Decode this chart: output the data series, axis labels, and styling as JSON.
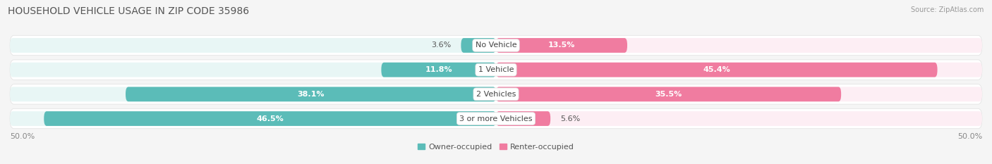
{
  "title": "HOUSEHOLD VEHICLE USAGE IN ZIP CODE 35986",
  "source": "Source: ZipAtlas.com",
  "categories": [
    "No Vehicle",
    "1 Vehicle",
    "2 Vehicles",
    "3 or more Vehicles"
  ],
  "owner_values": [
    3.6,
    11.8,
    38.1,
    46.5
  ],
  "renter_values": [
    13.5,
    45.4,
    35.5,
    5.6
  ],
  "owner_color": "#5bbcb8",
  "renter_color": "#f07ca0",
  "owner_bg": "#e8f6f5",
  "renter_bg": "#fdeef4",
  "row_bg": "#f0f0f0",
  "axis_label_left": "50.0%",
  "axis_label_right": "50.0%",
  "legend_owner": "Owner-occupied",
  "legend_renter": "Renter-occupied",
  "title_fontsize": 10,
  "label_fontsize": 8,
  "cat_fontsize": 8,
  "bg_color": "#f5f5f5"
}
